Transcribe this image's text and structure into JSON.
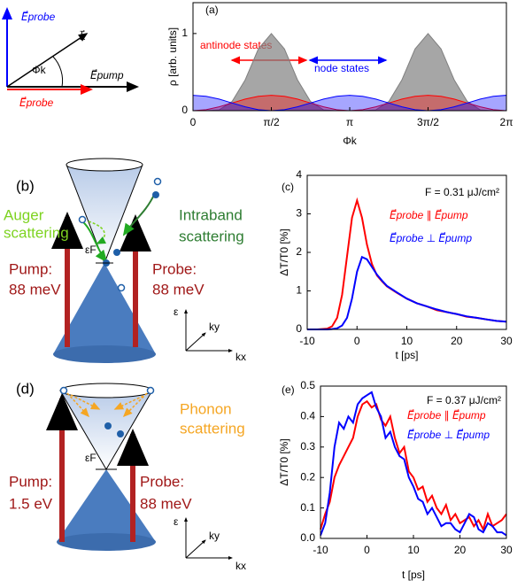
{
  "chart_data": [
    {
      "type": "line",
      "label": "(a)",
      "x_label": "Φk",
      "y_label": "ρ [arb. units]",
      "fill": true,
      "annotations": [
        "antinode states",
        "node states"
      ],
      "x": [
        0,
        0.262,
        0.524,
        0.785,
        1.047,
        1.309,
        1.571,
        1.833,
        2.094,
        2.356,
        2.618,
        2.88,
        3.142,
        3.403,
        3.665,
        3.927,
        4.189,
        4.451,
        4.712,
        4.974,
        5.236,
        5.498,
        5.76,
        6.021,
        6.283
      ],
      "series": [
        {
          "color": "#808080",
          "values": [
            0,
            0,
            0.01,
            0.12,
            0.4,
            0.8,
            1,
            0.8,
            0.4,
            0.12,
            0.01,
            0,
            0,
            0,
            0.01,
            0.12,
            0.4,
            0.8,
            1,
            0.8,
            0.4,
            0.12,
            0.01,
            0,
            0
          ]
        },
        {
          "color": "#ff0000",
          "values": [
            0,
            0.013,
            0.05,
            0.1,
            0.15,
            0.187,
            0.2,
            0.187,
            0.15,
            0.1,
            0.05,
            0.013,
            0,
            0.013,
            0.05,
            0.1,
            0.15,
            0.187,
            0.2,
            0.187,
            0.15,
            0.1,
            0.05,
            0.013,
            0
          ]
        },
        {
          "color": "#0000ff",
          "values": [
            0.2,
            0.187,
            0.15,
            0.1,
            0.05,
            0.013,
            0,
            0.013,
            0.05,
            0.1,
            0.15,
            0.187,
            0.2,
            0.187,
            0.15,
            0.1,
            0.05,
            0.013,
            0,
            0.013,
            0.05,
            0.1,
            0.15,
            0.187,
            0.2
          ]
        }
      ],
      "xlim": [
        0,
        6.283
      ],
      "ylim": [
        0,
        1.4
      ],
      "xticks": [
        {
          "value": 0,
          "label": "0"
        },
        {
          "value": 1.571,
          "label": "π/2"
        },
        {
          "value": 3.142,
          "label": "π"
        },
        {
          "value": 4.712,
          "label": "3π/2"
        },
        {
          "value": 6.283,
          "label": "2π"
        }
      ],
      "yticks": [
        0,
        1
      ]
    },
    {
      "type": "line",
      "label": "(c)",
      "x_label": "t [ps]",
      "y_label": "ΔT/T0 [%]",
      "annotations": [
        "F = 0.31 μJ/cm²"
      ],
      "x": [
        -10,
        -8,
        -6,
        -5,
        -4,
        -3,
        -2,
        -1,
        0,
        1,
        2,
        3,
        4,
        5,
        6,
        8,
        10,
        12,
        14,
        16,
        18,
        20,
        22,
        24,
        26,
        28,
        30
      ],
      "series": [
        {
          "name": "E⃗probe ∥ E⃗pump",
          "color": "#ff0000",
          "values": [
            0,
            0,
            0.02,
            0.08,
            0.3,
            0.9,
            1.9,
            2.9,
            3.35,
            2.9,
            2.2,
            1.7,
            1.4,
            1.25,
            1.12,
            0.95,
            0.8,
            0.68,
            0.6,
            0.5,
            0.45,
            0.4,
            0.33,
            0.3,
            0.26,
            0.22,
            0.2
          ]
        },
        {
          "name": "E⃗probe ⊥ E⃗pump",
          "color": "#0000ff",
          "values": [
            0,
            0,
            0,
            0.01,
            0.03,
            0.1,
            0.3,
            0.8,
            1.5,
            1.88,
            1.82,
            1.62,
            1.42,
            1.27,
            1.13,
            0.96,
            0.8,
            0.68,
            0.6,
            0.52,
            0.45,
            0.4,
            0.34,
            0.3,
            0.26,
            0.22,
            0.2
          ]
        }
      ],
      "xlim": [
        -10,
        30
      ],
      "ylim": [
        0,
        4
      ],
      "xticks": [
        -10,
        0,
        10,
        20,
        30
      ],
      "yticks": [
        0,
        1,
        2,
        3,
        4
      ]
    },
    {
      "type": "line",
      "label": "(e)",
      "x_label": "t [ps]",
      "y_label": "ΔT/T0 [%]",
      "annotations": [
        "F = 0.37 μJ/cm²"
      ],
      "x": [
        -10,
        -9,
        -8,
        -7,
        -6,
        -5,
        -4,
        -3,
        -2,
        -1,
        0,
        1,
        2,
        3,
        4,
        5,
        6,
        7,
        8,
        9,
        10,
        11,
        12,
        13,
        14,
        15,
        16,
        17,
        18,
        19,
        20,
        21,
        22,
        23,
        24,
        25,
        26,
        27,
        28,
        29,
        30
      ],
      "series": [
        {
          "name": "E⃗probe ∥ E⃗pump",
          "color": "#ff0000",
          "values": [
            0.03,
            0.08,
            0.12,
            0.2,
            0.24,
            0.27,
            0.3,
            0.33,
            0.4,
            0.44,
            0.45,
            0.43,
            0.44,
            0.39,
            0.37,
            0.4,
            0.33,
            0.28,
            0.3,
            0.22,
            0.2,
            0.16,
            0.17,
            0.12,
            0.14,
            0.1,
            0.08,
            0.11,
            0.06,
            0.08,
            0.05,
            0.06,
            0.07,
            0.04,
            0.06,
            0.03,
            0.08,
            0.04,
            0.05,
            0.06,
            0.08
          ]
        },
        {
          "name": "E⃗probe ⊥ E⃗pump",
          "color": "#0000ff",
          "values": [
            0.01,
            0.05,
            0.15,
            0.3,
            0.38,
            0.36,
            0.4,
            0.38,
            0.44,
            0.46,
            0.47,
            0.48,
            0.43,
            0.4,
            0.33,
            0.35,
            0.3,
            0.27,
            0.26,
            0.2,
            0.17,
            0.13,
            0.12,
            0.08,
            0.1,
            0.07,
            0.04,
            0.05,
            0.05,
            0.03,
            0.02,
            0.05,
            0.08,
            0.07,
            0.03,
            0.02,
            0.05,
            0.04,
            0.02,
            0.02,
            0.01
          ]
        }
      ],
      "xlim": [
        -10,
        30
      ],
      "ylim": [
        0,
        0.5
      ],
      "xticks": [
        -10,
        0,
        10,
        20,
        30
      ],
      "yticks": [
        {
          "value": 0,
          "label": "0.0"
        },
        0.1,
        0.2,
        0.3,
        0.4,
        0.5
      ]
    }
  ],
  "vectors": {
    "probe_perp": "E⃗probe",
    "k": "k⃗",
    "angle": "Φk",
    "pump": "E⃗pump",
    "probe_par": "E⃗probe"
  },
  "panel_b": {
    "label": "(b)",
    "auger": [
      "Auger",
      "scattering"
    ],
    "intraband": [
      "Intraband",
      "scattering"
    ],
    "pump": [
      "Pump:",
      "88 meV"
    ],
    "probe": [
      "Probe:",
      "88 meV"
    ],
    "fermi": "εF",
    "axes": [
      "ε",
      "ky",
      "kx"
    ]
  },
  "panel_d": {
    "label": "(d)",
    "phonon": [
      "Phonon",
      "scattering"
    ],
    "pump": [
      "Pump:",
      "1.5 eV"
    ],
    "probe": [
      "Probe:",
      "88 meV"
    ],
    "fermi": "εF",
    "axes": [
      "ε",
      "ky",
      "kx"
    ]
  }
}
